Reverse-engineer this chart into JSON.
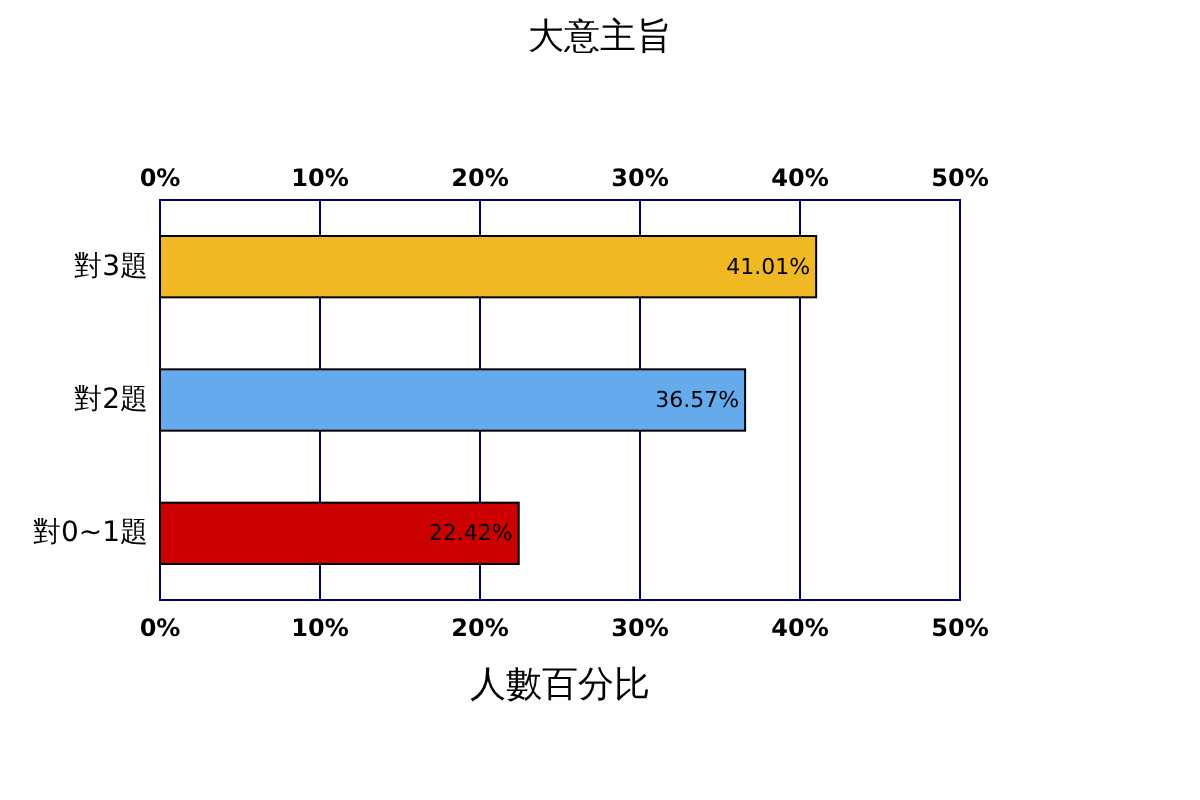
{
  "chart_data": {
    "type": "bar",
    "orientation": "horizontal",
    "title": "大意主旨",
    "xlabel": "人數百分比",
    "categories": [
      "對3題",
      "對2題",
      "對0~1題"
    ],
    "values": [
      41.01,
      36.57,
      22.42
    ],
    "colors": [
      "#f0b923",
      "#66aaee",
      "#cc0000"
    ],
    "value_labels": [
      "41.01%",
      "36.57%",
      "22.42%"
    ],
    "xlim": [
      0,
      50
    ],
    "xticks": [
      {
        "value": 0,
        "label": "0%"
      },
      {
        "value": 10,
        "label": "10%"
      },
      {
        "value": 20,
        "label": "20%"
      },
      {
        "value": 30,
        "label": "30%"
      },
      {
        "value": 40,
        "label": "40%"
      },
      {
        "value": 50,
        "label": "50%"
      }
    ],
    "x2lim": [
      0,
      50
    ],
    "x2ticks": [
      {
        "value": 0,
        "label": "0%"
      },
      {
        "value": 10,
        "label": "10%"
      },
      {
        "value": 20,
        "label": "20%"
      },
      {
        "value": 30,
        "label": "30%"
      },
      {
        "value": 40,
        "label": "40%"
      },
      {
        "value": 50,
        "label": "50%"
      }
    ],
    "grid": "x"
  }
}
